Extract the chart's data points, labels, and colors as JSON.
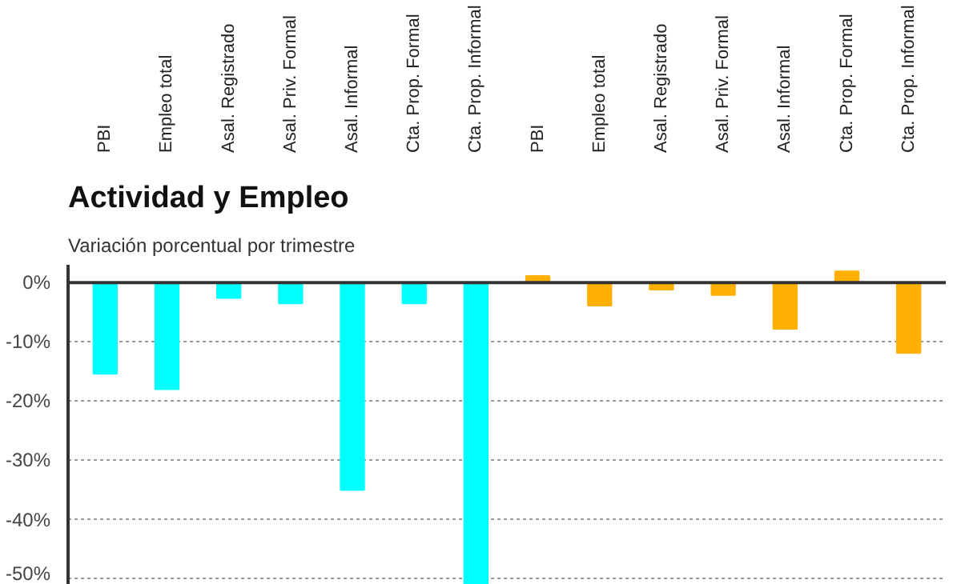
{
  "chart_data": {
    "type": "bar",
    "title": "Actividad y Empleo",
    "subtitle": "Variación porcentual por trimestre",
    "categories": [
      "PBI",
      "Empleo total",
      "Asal. Registrado",
      "Asal. Priv. Formal",
      "Asal. Informal",
      "Cta. Prop. Formal",
      "Cta. Prop. Informal",
      "PBI",
      "Empleo total",
      "Asal. Registrado",
      "Asal. Priv. Formal",
      "Asal. Informal",
      "Cta. Prop. Formal",
      "Cta. Prop. Informal"
    ],
    "values": [
      -15.4,
      -18,
      -2.6,
      -3.5,
      -35,
      -3.5,
      -51,
      1.1,
      -3.9,
      -1.2,
      -2.1,
      -7.8,
      1.9,
      -11.9
    ],
    "colors": [
      "#00ffff",
      "#00ffff",
      "#00ffff",
      "#00ffff",
      "#00ffff",
      "#00ffff",
      "#00ffff",
      "#ffb000",
      "#ffb000",
      "#ffb000",
      "#ffb000",
      "#ffb000",
      "#ffb000",
      "#ffb000"
    ],
    "ylim": [
      -51,
      3
    ],
    "yticks": [
      {
        "value": 0,
        "label": "0%"
      },
      {
        "value": -10,
        "label": "-10%"
      },
      {
        "value": -20,
        "label": "-20%"
      },
      {
        "value": -30,
        "label": "-30%"
      },
      {
        "value": -40,
        "label": "-40%"
      },
      {
        "value": -50,
        "label": "-50%"
      }
    ],
    "grid": "y"
  }
}
